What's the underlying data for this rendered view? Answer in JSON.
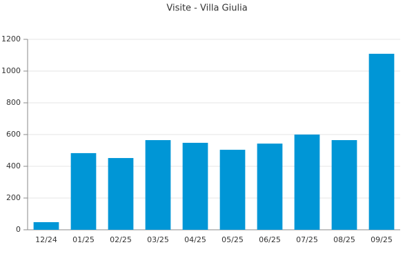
{
  "chart_data": {
    "type": "bar",
    "title": "Visite - Villa Giulia",
    "categories": [
      "12/24",
      "01/25",
      "02/25",
      "03/25",
      "04/25",
      "05/25",
      "06/25",
      "07/25",
      "08/25",
      "09/25"
    ],
    "values": [
      48,
      483,
      452,
      565,
      548,
      504,
      543,
      600,
      565,
      1109
    ],
    "color": "#0096d6",
    "ylim": [
      0,
      1200
    ],
    "yticks": [
      0,
      200,
      400,
      600,
      800,
      1000,
      1200
    ],
    "grid": true
  }
}
